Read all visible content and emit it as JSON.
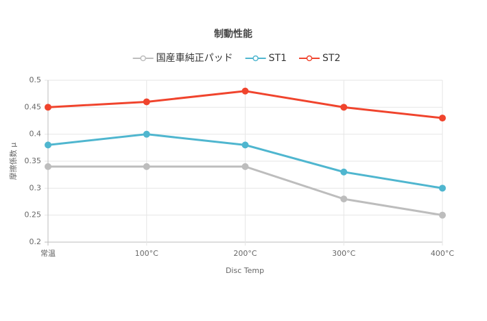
{
  "chart_data": {
    "type": "line",
    "title": "制動性能",
    "categories": [
      "常温",
      "100°C",
      "200°C",
      "300°C",
      "400°C"
    ],
    "series": [
      {
        "name": "国産車純正パッド",
        "color": "#bdbdbd",
        "values": [
          0.34,
          0.34,
          0.34,
          0.28,
          0.25
        ]
      },
      {
        "name": "ST1",
        "color": "#4fb6cf",
        "values": [
          0.38,
          0.4,
          0.38,
          0.33,
          0.3
        ]
      },
      {
        "name": "ST2",
        "color": "#f0442d",
        "values": [
          0.45,
          0.46,
          0.48,
          0.45,
          0.43
        ]
      }
    ],
    "x_label": "Disc Temp",
    "y_label": "摩擦係数 μ",
    "ylim": [
      0.2,
      0.5
    ],
    "yticks": [
      0.2,
      0.25,
      0.3,
      0.35,
      0.4,
      0.45,
      0.5
    ],
    "grid": true,
    "legend": "top"
  }
}
